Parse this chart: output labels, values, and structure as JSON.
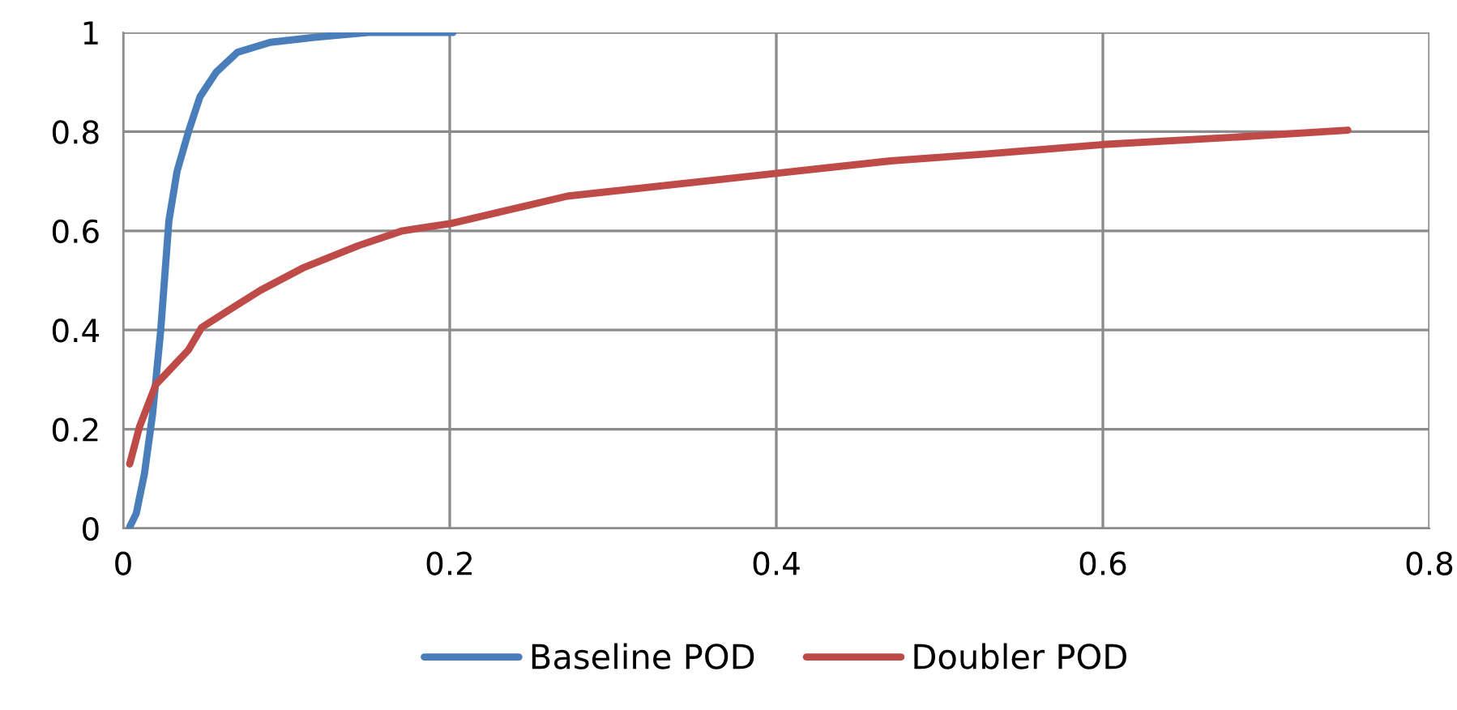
{
  "chart_data": {
    "type": "line",
    "xlim": [
      0,
      0.8
    ],
    "ylim": [
      0,
      1
    ],
    "xticks": [
      0,
      0.2,
      0.4,
      0.6,
      0.8
    ],
    "yticks": [
      0,
      0.2,
      0.4,
      0.6,
      0.8,
      1
    ],
    "grid": true,
    "legend": "bottom",
    "marker": "none",
    "line_style": "solid",
    "series": [
      {
        "name": "Baseline POD",
        "color": "#4a7ebb",
        "x": [
          0.004,
          0.008,
          0.013,
          0.018,
          0.023,
          0.028,
          0.033,
          0.04,
          0.047,
          0.057,
          0.07,
          0.09,
          0.117,
          0.15,
          0.202
        ],
        "values": [
          0.003,
          0.03,
          0.11,
          0.23,
          0.4,
          0.62,
          0.72,
          0.8,
          0.87,
          0.92,
          0.96,
          0.98,
          0.99,
          1.0,
          1.0
        ]
      },
      {
        "name": "Doubler POD",
        "color": "#be4b48",
        "x": [
          0.004,
          0.01,
          0.02,
          0.03,
          0.04,
          0.048,
          0.067,
          0.084,
          0.11,
          0.144,
          0.171,
          0.201,
          0.272,
          0.4,
          0.47,
          0.529,
          0.6,
          0.687,
          0.75
        ],
        "values": [
          0.13,
          0.205,
          0.29,
          0.325,
          0.36,
          0.405,
          0.445,
          0.48,
          0.525,
          0.57,
          0.6,
          0.615,
          0.67,
          0.716,
          0.741,
          0.755,
          0.774,
          0.79,
          0.803
        ]
      }
    ]
  }
}
